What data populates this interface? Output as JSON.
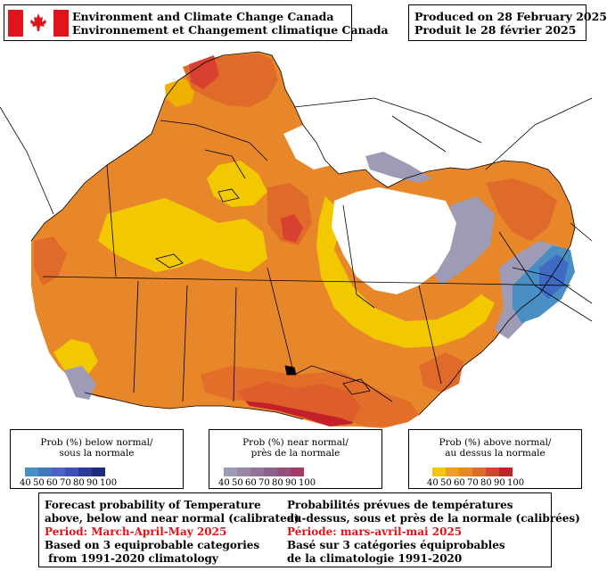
{
  "header": {
    "agency_en": "Environment and Climate Change Canada",
    "agency_fr": "Environnement et Changement climatique Canada",
    "produced_en": "Produced on 28 February 2025",
    "produced_fr": "Produit le 28 février 2025"
  },
  "legends": [
    {
      "title_en": "Prob (%) below normal/",
      "title_fr": "sous la normale",
      "ticks": [
        "40",
        "50",
        "60",
        "70",
        "80",
        "90",
        "100"
      ],
      "colors": [
        "#4a8fc4",
        "#3f77c1",
        "#4a62c9",
        "#3f4fb8",
        "#2e3a99",
        "#1f2a7a"
      ]
    },
    {
      "title_en": "Prob (%) near normal/",
      "title_fr": "près de la normale",
      "ticks": [
        "40",
        "50",
        "60",
        "70",
        "80",
        "90",
        "100"
      ],
      "colors": [
        "#9d9bb5",
        "#9a86a6",
        "#937399",
        "#8c618c",
        "#944f7a",
        "#a33a6a"
      ]
    },
    {
      "title_en": "Prob (%) above normal/",
      "title_fr": "au dessus la normale",
      "ticks": [
        "40",
        "50",
        "60",
        "70",
        "80",
        "90",
        "100"
      ],
      "colors": [
        "#f2c800",
        "#f0a020",
        "#e8862a",
        "#e06a2a",
        "#d84030",
        "#c51f2b"
      ]
    }
  ],
  "footer": {
    "en": {
      "line1": "Forecast probability of Temperature",
      "line2": "above, below and near normal (calibrated)",
      "period": "Period: March-April-May 2025",
      "line4": "Based on 3 equiprobable categories",
      "line5": " from 1991-2020 climatology"
    },
    "fr": {
      "line1": "Probabilités prévues de températures",
      "line2": "au-dessus, sous et près de la normale (calibrées)",
      "period": "Période: mars-avril-mai 2025",
      "line4": "Basé sur 3 catégories équiprobables",
      "line5": "de la climatologie 1991-2020"
    }
  },
  "map": {
    "colors": {
      "above_40": "#f2c800",
      "above_50": "#f0a020",
      "above_60": "#e8862a",
      "above_70": "#e06a2a",
      "above_80": "#d84030",
      "above_90": "#c51f2b",
      "near_40": "#9d9bb5",
      "below_40": "#4a8fc4",
      "below_60": "#3f6bc4",
      "no_signal": "#ffffff",
      "boundary": "#000000",
      "flag_red": "#e0141b"
    }
  }
}
